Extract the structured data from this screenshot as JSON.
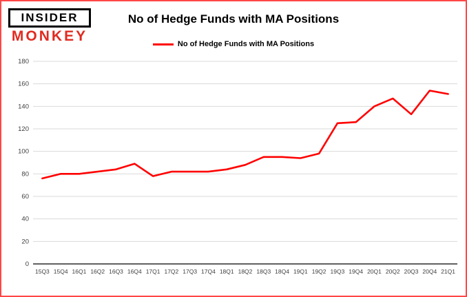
{
  "logo": {
    "line1": "INSIDER",
    "line2": "MONKEY"
  },
  "title": "No of Hedge Funds with MA Positions",
  "legend": {
    "label": "No of Hedge Funds with MA Positions",
    "color": "#ff0000"
  },
  "colors": {
    "accent": "#ff0000",
    "grid": "#d9d9d9",
    "axis": "#000000",
    "tick_label": "#404040",
    "page_border": "#ff4646"
  },
  "chart_data": {
    "type": "line",
    "title": "No of Hedge Funds with MA Positions",
    "categories": [
      "15Q3",
      "15Q4",
      "16Q1",
      "16Q2",
      "16Q3",
      "16Q4",
      "17Q1",
      "17Q2",
      "17Q3",
      "17Q4",
      "18Q1",
      "18Q2",
      "18Q3",
      "18Q4",
      "19Q1",
      "19Q2",
      "19Q3",
      "19Q4",
      "20Q1",
      "20Q2",
      "20Q3",
      "20Q4",
      "21Q1"
    ],
    "series": [
      {
        "name": "No of Hedge Funds with MA Positions",
        "color": "#ff0000",
        "values": [
          76,
          80,
          80,
          82,
          84,
          89,
          78,
          82,
          82,
          82,
          84,
          88,
          95,
          95,
          94,
          98,
          125,
          126,
          140,
          147,
          133,
          154,
          151
        ]
      }
    ],
    "xlabel": "",
    "ylabel": "",
    "ylim": [
      0,
      180
    ],
    "ytick_step": 20,
    "grid": true,
    "legend_position": "top"
  }
}
